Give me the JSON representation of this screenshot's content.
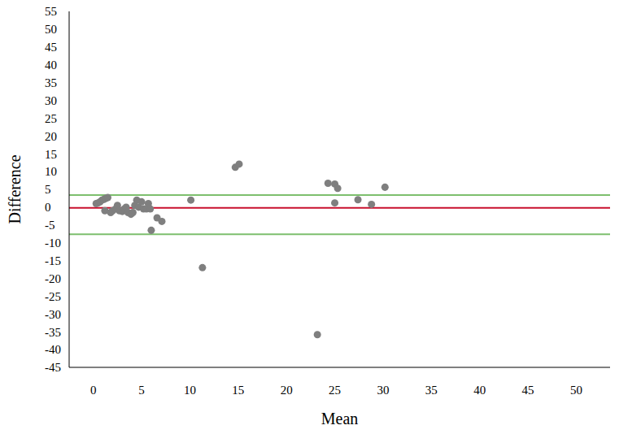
{
  "chart_data": {
    "type": "scatter",
    "x_label": "Mean",
    "y_label": "Difference",
    "color": "#7f7f7f",
    "marker": "circle",
    "grid": false,
    "xlim": [
      -2.5,
      53.5
    ],
    "xticks": [
      0,
      5,
      10,
      15,
      20,
      25,
      30,
      35,
      40,
      45,
      50
    ],
    "ylim": [
      -45,
      55
    ],
    "yticks": [
      -45,
      -40,
      -35,
      -30,
      -25,
      -20,
      -15,
      -10,
      -5,
      0,
      5,
      10,
      15,
      20,
      25,
      30,
      35,
      40,
      45,
      50,
      55
    ],
    "x": [
      0.3,
      0.5,
      0.7,
      0.9,
      1.1,
      1.3,
      1.5,
      1.2,
      1.8,
      2.0,
      2.3,
      2.5,
      2.7,
      3.0,
      3.2,
      3.4,
      3.6,
      3.9,
      4.1,
      4.3,
      4.5,
      4.7,
      5.0,
      5.2,
      5.5,
      5.7,
      5.9,
      6.0,
      6.6,
      7.1,
      10.1,
      11.3,
      14.7,
      15.1,
      23.2,
      24.3,
      25.0,
      25.3,
      25.0,
      27.4,
      28.8,
      30.2
    ],
    "values": [
      1.0,
      1.2,
      1.5,
      2.0,
      2.2,
      2.5,
      2.7,
      -1.0,
      -1.5,
      -1.0,
      -0.5,
      0.5,
      -1.0,
      -1.2,
      -0.5,
      0.0,
      -1.5,
      -2.0,
      -1.5,
      0.5,
      2.0,
      0.0,
      1.5,
      -0.5,
      -0.5,
      1.0,
      -0.5,
      -6.5,
      -3.0,
      -4.0,
      2.0,
      -17.0,
      11.2,
      12.1,
      -35.8,
      6.7,
      6.5,
      5.3,
      1.2,
      2.1,
      0.8,
      5.6
    ],
    "reference_lines": [
      {
        "value": -0.2,
        "color": "#c8102e"
      },
      {
        "value": 3.4,
        "color": "#7dbf6e"
      },
      {
        "value": -7.6,
        "color": "#7dbf6e"
      }
    ]
  }
}
